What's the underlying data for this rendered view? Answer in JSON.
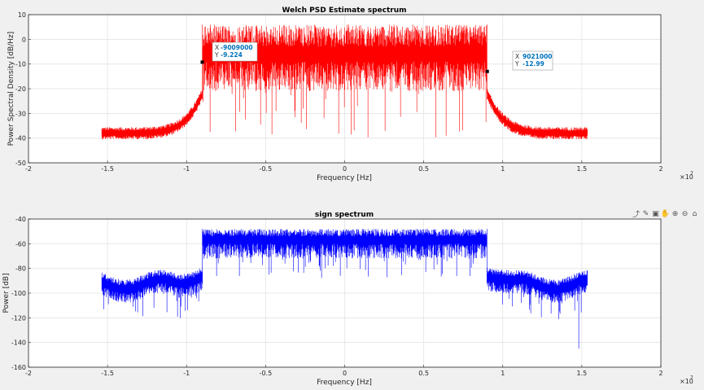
{
  "chart_data": [
    {
      "type": "line",
      "title": "Welch PSD Estimate spectrum",
      "xlabel": "Frequency [Hz]",
      "ylabel": "Power Spectral Density [dB/Hz]",
      "x_exponent": "×10",
      "x_exponent_power": "7",
      "xlim": [
        -20000000.0,
        20000000.0
      ],
      "ylim": [
        -50,
        10
      ],
      "xticks": [
        -20000000.0,
        -15000000.0,
        -10000000.0,
        -5000000.0,
        0,
        5000000.0,
        10000000.0,
        15000000.0,
        20000000.0
      ],
      "xtick_labels": [
        "-2",
        "-1.5",
        "-1",
        "-0.5",
        "0",
        "0.5",
        "1",
        "1.5",
        "2"
      ],
      "yticks": [
        -50,
        -40,
        -30,
        -20,
        -10,
        0,
        10
      ],
      "ytick_labels": [
        "-50",
        "-40",
        "-30",
        "-20",
        "-10",
        "0",
        "10"
      ],
      "grid": true,
      "series": [
        {
          "name": "Welch PSD",
          "color": "#ff0000",
          "x_range": [
            -15360000.0,
            15360000.0
          ],
          "passband_edges": [
            -9000000.0,
            9000000.0
          ],
          "passband_level_db": -3,
          "passband_peak_db": 6,
          "passband_dip_min_db": -40,
          "skirt_edge_db": -22,
          "skirt_floor_db": -38
        }
      ],
      "datatips": [
        {
          "x_label": "X",
          "x": "-9009000",
          "y_label": "Y",
          "y": "-9.224",
          "x_value": -9009000,
          "y_value": -9.224
        },
        {
          "x_label": "X",
          "x": "9021000",
          "y_label": "Y",
          "y": "-12.99",
          "x_value": 9021000,
          "y_value": -12.99
        }
      ]
    },
    {
      "type": "line",
      "title": "sign spectrum",
      "xlabel": "Frequency [Hz]",
      "ylabel": "Power [dB]",
      "x_exponent": "×10",
      "x_exponent_power": "7",
      "xlim": [
        -20000000.0,
        20000000.0
      ],
      "ylim": [
        -160,
        -40
      ],
      "xticks": [
        -20000000.0,
        -15000000.0,
        -10000000.0,
        -5000000.0,
        0,
        5000000.0,
        10000000.0,
        15000000.0,
        20000000.0
      ],
      "xtick_labels": [
        "-2",
        "-1.5",
        "-1",
        "-0.5",
        "0",
        "0.5",
        "1",
        "1.5",
        "2"
      ],
      "yticks": [
        -160,
        -140,
        -120,
        -100,
        -80,
        -60,
        -40
      ],
      "ytick_labels": [
        "-160",
        "-140",
        "-120",
        "-100",
        "-80",
        "-60",
        "-40"
      ],
      "grid": true,
      "series": [
        {
          "name": "sign spectrum",
          "color": "#0000ff",
          "x_range": [
            -15360000.0,
            15360000.0
          ],
          "passband_edges": [
            -9000000.0,
            9000000.0
          ],
          "passband_level_db": -54,
          "passband_peak_db": -48,
          "passband_dip_min_db": -88,
          "outer_level_db": -92,
          "outer_dip_min_db": -145
        }
      ]
    }
  ],
  "toolbar": {
    "icons": [
      "export-icon",
      "brush-icon",
      "datatip-icon",
      "pan-icon",
      "zoom-in-icon",
      "zoom-out-icon",
      "home-icon"
    ],
    "glyphs": [
      "⤴",
      "✎",
      "▣",
      "✋",
      "⊕",
      "⊖",
      "⌂"
    ]
  },
  "colors": {
    "axes_bg": "#ffffff",
    "figure_bg": "#f0f0f0",
    "grid": "#e3e3e3",
    "axis": "#262626",
    "datatip_value": "#0072bd"
  }
}
